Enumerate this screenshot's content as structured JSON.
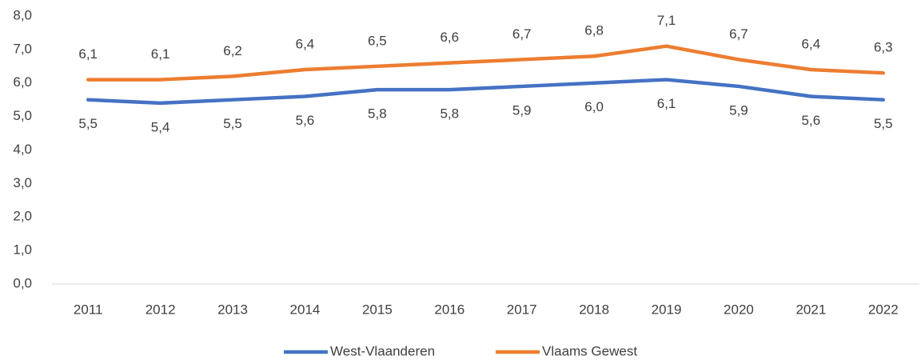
{
  "chart_data": {
    "type": "line",
    "categories": [
      "2011",
      "2012",
      "2013",
      "2014",
      "2015",
      "2016",
      "2017",
      "2018",
      "2019",
      "2020",
      "2021",
      "2022"
    ],
    "series": [
      {
        "name": "West-Vlaanderen",
        "color": "#4472c4",
        "values": [
          5.5,
          5.4,
          5.5,
          5.6,
          5.8,
          5.8,
          5.9,
          6.0,
          6.1,
          5.9,
          5.6,
          5.5
        ],
        "value_labels": [
          "5,5",
          "5,4",
          "5,5",
          "5,6",
          "5,8",
          "5,8",
          "5,9",
          "6,0",
          "6,1",
          "5,9",
          "5,6",
          "5,5"
        ]
      },
      {
        "name": "Vlaams Gewest",
        "color": "#ed7d31",
        "values": [
          6.1,
          6.1,
          6.2,
          6.4,
          6.5,
          6.6,
          6.7,
          6.8,
          7.1,
          6.7,
          6.4,
          6.3
        ],
        "value_labels": [
          "6,1",
          "6,1",
          "6,2",
          "6,4",
          "6,5",
          "6,6",
          "6,7",
          "6,8",
          "7,1",
          "6,7",
          "6,4",
          "6,3"
        ]
      }
    ],
    "ylim": [
      0,
      8
    ],
    "yticks": [
      {
        "value": 0,
        "label": "0,0"
      },
      {
        "value": 1,
        "label": "1,0"
      },
      {
        "value": 2,
        "label": "2,0"
      },
      {
        "value": 3,
        "label": "3,0"
      },
      {
        "value": 4,
        "label": "4,0"
      },
      {
        "value": 5,
        "label": "5,0"
      },
      {
        "value": 6,
        "label": "6,0"
      },
      {
        "value": 7,
        "label": "7,0"
      },
      {
        "value": 8,
        "label": "8,0"
      }
    ],
    "grid": false,
    "legend": "bottom"
  }
}
